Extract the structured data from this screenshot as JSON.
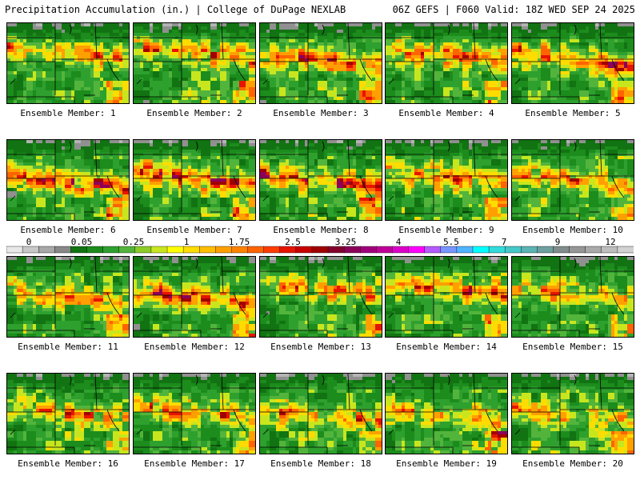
{
  "header": {
    "title_left": "Precipitation Accumulation (in.) | College of DuPage NEXLAB",
    "title_right": "06Z GEFS | F060 Valid: 18Z WED SEP 24 2025"
  },
  "colorbar": {
    "tick_labels": [
      "0",
      "0.05",
      "0.25",
      "1",
      "1.75",
      "2.5",
      "3.25",
      "4",
      "5.5",
      "7",
      "9",
      "12"
    ],
    "colors": [
      "#e8e8e8",
      "#c8c8c8",
      "#a8a8a8",
      "#888888",
      "#127312",
      "#1c8c1c",
      "#2ea02e",
      "#53b43c",
      "#8ccc28",
      "#c8e61e",
      "#ffff00",
      "#ffdc00",
      "#ffbe00",
      "#ffa000",
      "#ff8200",
      "#ff6400",
      "#ff3c00",
      "#e61400",
      "#c80000",
      "#a00000",
      "#82002d",
      "#8c005a",
      "#a0007a",
      "#be0096",
      "#dc00c8",
      "#ff00ff",
      "#b45aff",
      "#7896ff",
      "#50b4ff",
      "#00ffff",
      "#32dcdc",
      "#46c8c8",
      "#5ab4b4",
      "#6ea0a0",
      "#828c8c",
      "#969696",
      "#aaaaaa",
      "#bebebe",
      "#d2d2d2"
    ]
  },
  "panels": [
    {
      "label": "Ensemble Member: 1"
    },
    {
      "label": "Ensemble Member: 2"
    },
    {
      "label": "Ensemble Member: 3"
    },
    {
      "label": "Ensemble Member: 4"
    },
    {
      "label": "Ensemble Member: 5"
    },
    {
      "label": "Ensemble Member: 6"
    },
    {
      "label": "Ensemble Member: 7"
    },
    {
      "label": "Ensemble Member: 8"
    },
    {
      "label": "Ensemble Member: 9"
    },
    {
      "label": "Ensemble Member: 10"
    },
    {
      "label": "Ensemble Member: 11"
    },
    {
      "label": "Ensemble Member: 12"
    },
    {
      "label": "Ensemble Member: 13"
    },
    {
      "label": "Ensemble Member: 14"
    },
    {
      "label": "Ensemble Member: 15"
    },
    {
      "label": "Ensemble Member: 16"
    },
    {
      "label": "Ensemble Member: 17"
    },
    {
      "label": "Ensemble Member: 18"
    },
    {
      "label": "Ensemble Member: 19"
    },
    {
      "label": "Ensemble Member: 20"
    }
  ]
}
